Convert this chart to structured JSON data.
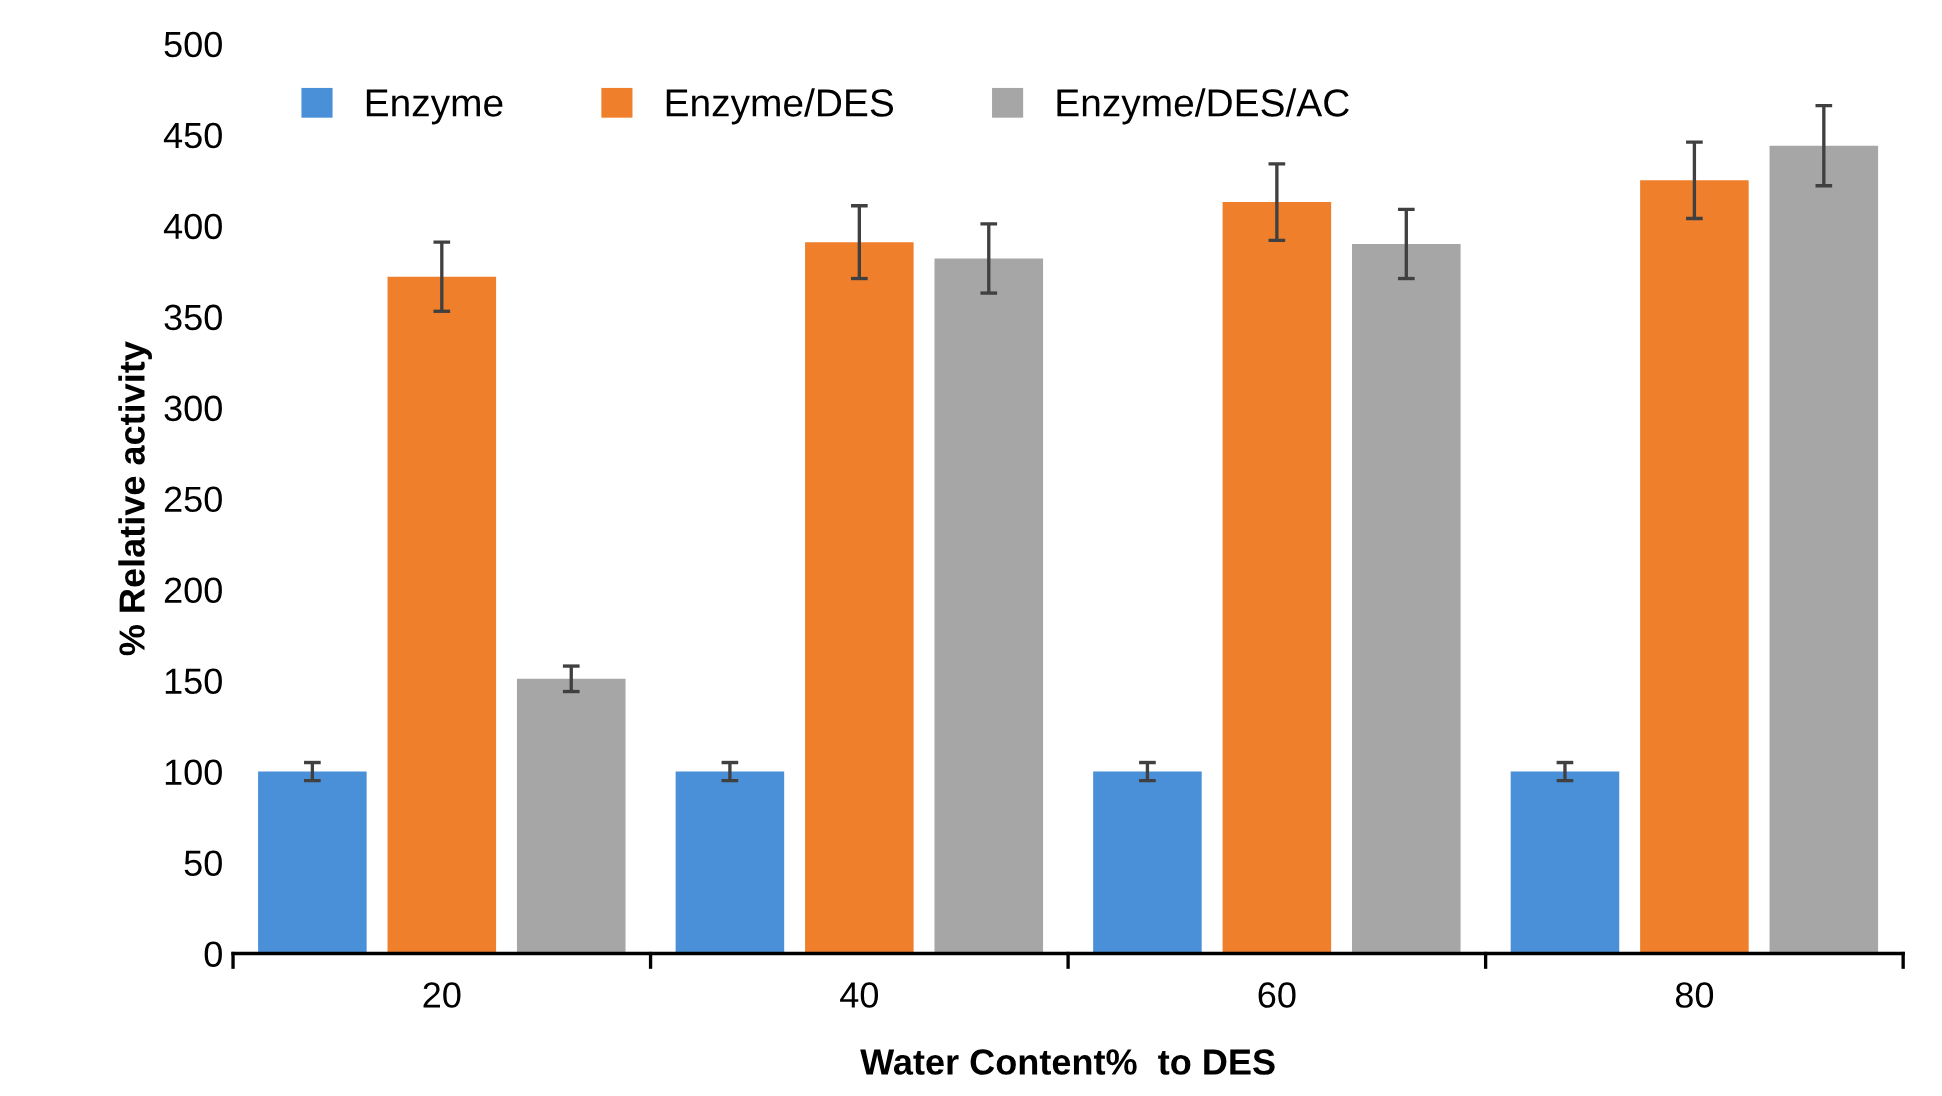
{
  "chart_data": {
    "type": "bar",
    "xlabel": "Water Content%  to DES",
    "ylabel": "% Relative activity",
    "categories": [
      "20",
      "40",
      "60",
      "80"
    ],
    "series": [
      {
        "name": "Enzyme",
        "color": "#4a90d9",
        "values": [
          100,
          100,
          100,
          100
        ],
        "errors": [
          5,
          5,
          5,
          5
        ]
      },
      {
        "name": "Enzyme/DES",
        "color": "#f07f2c",
        "values": [
          372,
          391,
          413,
          425
        ],
        "errors": [
          19,
          20,
          21,
          21
        ]
      },
      {
        "name": "Enzyme/DES/AC",
        "color": "#a6a6a6",
        "values": [
          151,
          382,
          390,
          444
        ],
        "errors": [
          7,
          19,
          19,
          22
        ]
      }
    ],
    "ylim": [
      0,
      500
    ],
    "yticks": [
      0,
      50,
      100,
      150,
      200,
      250,
      300,
      350,
      400,
      450,
      500
    ],
    "grid": false,
    "legend": "top left"
  }
}
